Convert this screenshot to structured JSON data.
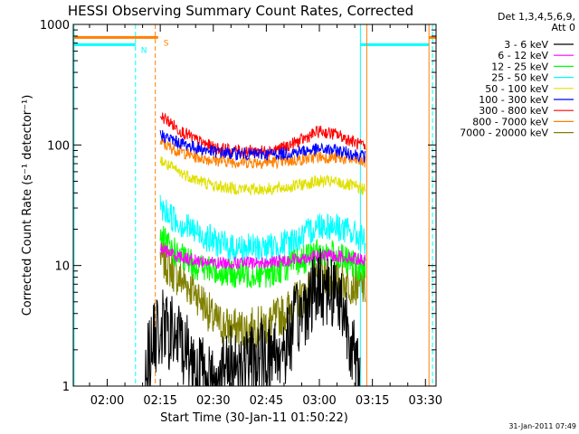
{
  "chart_data": {
    "type": "line",
    "title": "HESSI Observing Summary Count Rates, Corrected",
    "xlabel": "Start Time (30-Jan-11 01:50:22)",
    "ylabel": "Corrected Count Rate (s⁻¹ detector⁻¹)",
    "ylim": [
      1,
      1000
    ],
    "y_scale": "log",
    "x_range_minutes": [
      110.4,
      213
    ],
    "x_ticks": [
      {
        "m": 120,
        "label": "02:00"
      },
      {
        "m": 135,
        "label": "02:15"
      },
      {
        "m": 150,
        "label": "02:30"
      },
      {
        "m": 165,
        "label": "02:45"
      },
      {
        "m": 180,
        "label": "03:00"
      },
      {
        "m": 195,
        "label": "03:15"
      },
      {
        "m": 210,
        "label": "03:30"
      }
    ],
    "y_ticks": [
      {
        "v": 1,
        "label": "1"
      },
      {
        "v": 10,
        "label": "10"
      },
      {
        "v": 100,
        "label": "100"
      },
      {
        "v": 1000,
        "label": "1000"
      }
    ],
    "legend": {
      "header": [
        "Det 1,3,4,5,6,9,",
        "Att 0"
      ],
      "placement": "right"
    },
    "series": [
      {
        "name": "3 - 6 keV",
        "color": "#000000",
        "x": [
          130.5,
          135,
          140,
          145,
          150,
          155,
          160,
          165,
          170,
          175,
          180,
          185,
          190,
          191.5
        ],
        "y": [
          1.2,
          3.0,
          2.5,
          1.5,
          1.0,
          1.5,
          1.5,
          1.8,
          2.0,
          4.0,
          7.0,
          6.0,
          1.5,
          1.0
        ]
      },
      {
        "name": "6 - 12 keV",
        "color": "#ff00ff",
        "x": [
          135,
          137,
          140,
          145,
          150,
          155,
          160,
          165,
          170,
          175,
          180,
          185,
          190,
          193
        ],
        "y": [
          14,
          13,
          12,
          11,
          10.5,
          10.5,
          10.5,
          10.5,
          11,
          11.5,
          12,
          12,
          11.5,
          11
        ]
      },
      {
        "name": "12 - 25 keV",
        "color": "#00ff00",
        "x": [
          135,
          137,
          140,
          145,
          150,
          155,
          160,
          165,
          170,
          175,
          180,
          185,
          190,
          193
        ],
        "y": [
          17,
          15,
          12,
          10,
          9,
          8.5,
          8.5,
          8.5,
          9.5,
          11,
          13,
          12,
          10,
          9
        ]
      },
      {
        "name": "25 - 50 keV",
        "color": "#00ffff",
        "x": [
          135,
          137,
          140,
          145,
          150,
          155,
          160,
          165,
          170,
          175,
          180,
          185,
          190,
          193
        ],
        "y": [
          30,
          27,
          23,
          19,
          16,
          14,
          14,
          14,
          15,
          17,
          22,
          21,
          18,
          16
        ]
      },
      {
        "name": "50 - 100 keV",
        "color": "#e0e000",
        "x": [
          135,
          137,
          140,
          145,
          150,
          155,
          160,
          165,
          170,
          175,
          180,
          185,
          190,
          193
        ],
        "y": [
          75,
          68,
          60,
          52,
          46,
          44,
          43,
          43,
          44,
          47,
          50,
          49,
          45,
          43
        ]
      },
      {
        "name": "100 - 300 keV",
        "color": "#0000ff",
        "x": [
          135,
          137,
          140,
          145,
          150,
          155,
          160,
          165,
          170,
          175,
          180,
          185,
          190,
          193
        ],
        "y": [
          122,
          115,
          105,
          95,
          88,
          85,
          84,
          84,
          85,
          89,
          92,
          90,
          84,
          80
        ]
      },
      {
        "name": "300 - 800 keV",
        "color": "#ff0000",
        "x": [
          135,
          137,
          140,
          145,
          150,
          155,
          160,
          165,
          170,
          175,
          180,
          185,
          190,
          193
        ],
        "y": [
          175,
          160,
          135,
          110,
          95,
          90,
          89,
          89,
          95,
          110,
          130,
          122,
          105,
          95
        ]
      },
      {
        "name": "800 - 7000 keV",
        "color": "#ff8000",
        "x": [
          135,
          137,
          140,
          145,
          150,
          155,
          160,
          165,
          170,
          175,
          180,
          185,
          190,
          193
        ],
        "y": [
          105,
          98,
          90,
          80,
          75,
          73,
          72,
          72,
          73,
          76,
          80,
          78,
          75,
          72
        ]
      },
      {
        "name": "7000 - 20000 keV",
        "color": "#808000",
        "x": [
          135,
          137,
          140,
          145,
          150,
          155,
          160,
          165,
          170,
          175,
          180,
          185,
          190,
          193
        ],
        "y": [
          12,
          10,
          8,
          6,
          3.5,
          3.0,
          3.0,
          3.2,
          4.0,
          5.5,
          7.5,
          7.5,
          7.0,
          6.5
        ]
      }
    ],
    "status_bars": [
      {
        "color": "#ff8000",
        "y": 780,
        "x": [
          110.4,
          134.4
        ],
        "label": "S"
      },
      {
        "color": "#00ffff",
        "y": 680,
        "x": [
          110.4,
          128.0
        ],
        "label": "N"
      },
      {
        "color": "#00ffff",
        "y": 680,
        "x": [
          191.6,
          211.0
        ],
        "label": ""
      },
      {
        "color": "#ff8000",
        "y": 780,
        "x": [
          211.0,
          213.0
        ],
        "label": ""
      }
    ],
    "vertical_lines": [
      {
        "color": "#00ffff",
        "x": 110.6,
        "style": "solid"
      },
      {
        "color": "#00ffff",
        "x": 128.0,
        "style": "dashed"
      },
      {
        "color": "#ff8000",
        "x": 133.6,
        "style": "dashed"
      },
      {
        "color": "#00ffff",
        "x": 191.6,
        "style": "solid"
      },
      {
        "color": "#ff8000",
        "x": 193.4,
        "style": "solid"
      },
      {
        "color": "#ff8000",
        "x": 211.0,
        "style": "solid"
      },
      {
        "color": "#00ffff",
        "x": 212.0,
        "style": "dashed"
      }
    ],
    "timestamp": "31-Jan-2011 07:49"
  }
}
